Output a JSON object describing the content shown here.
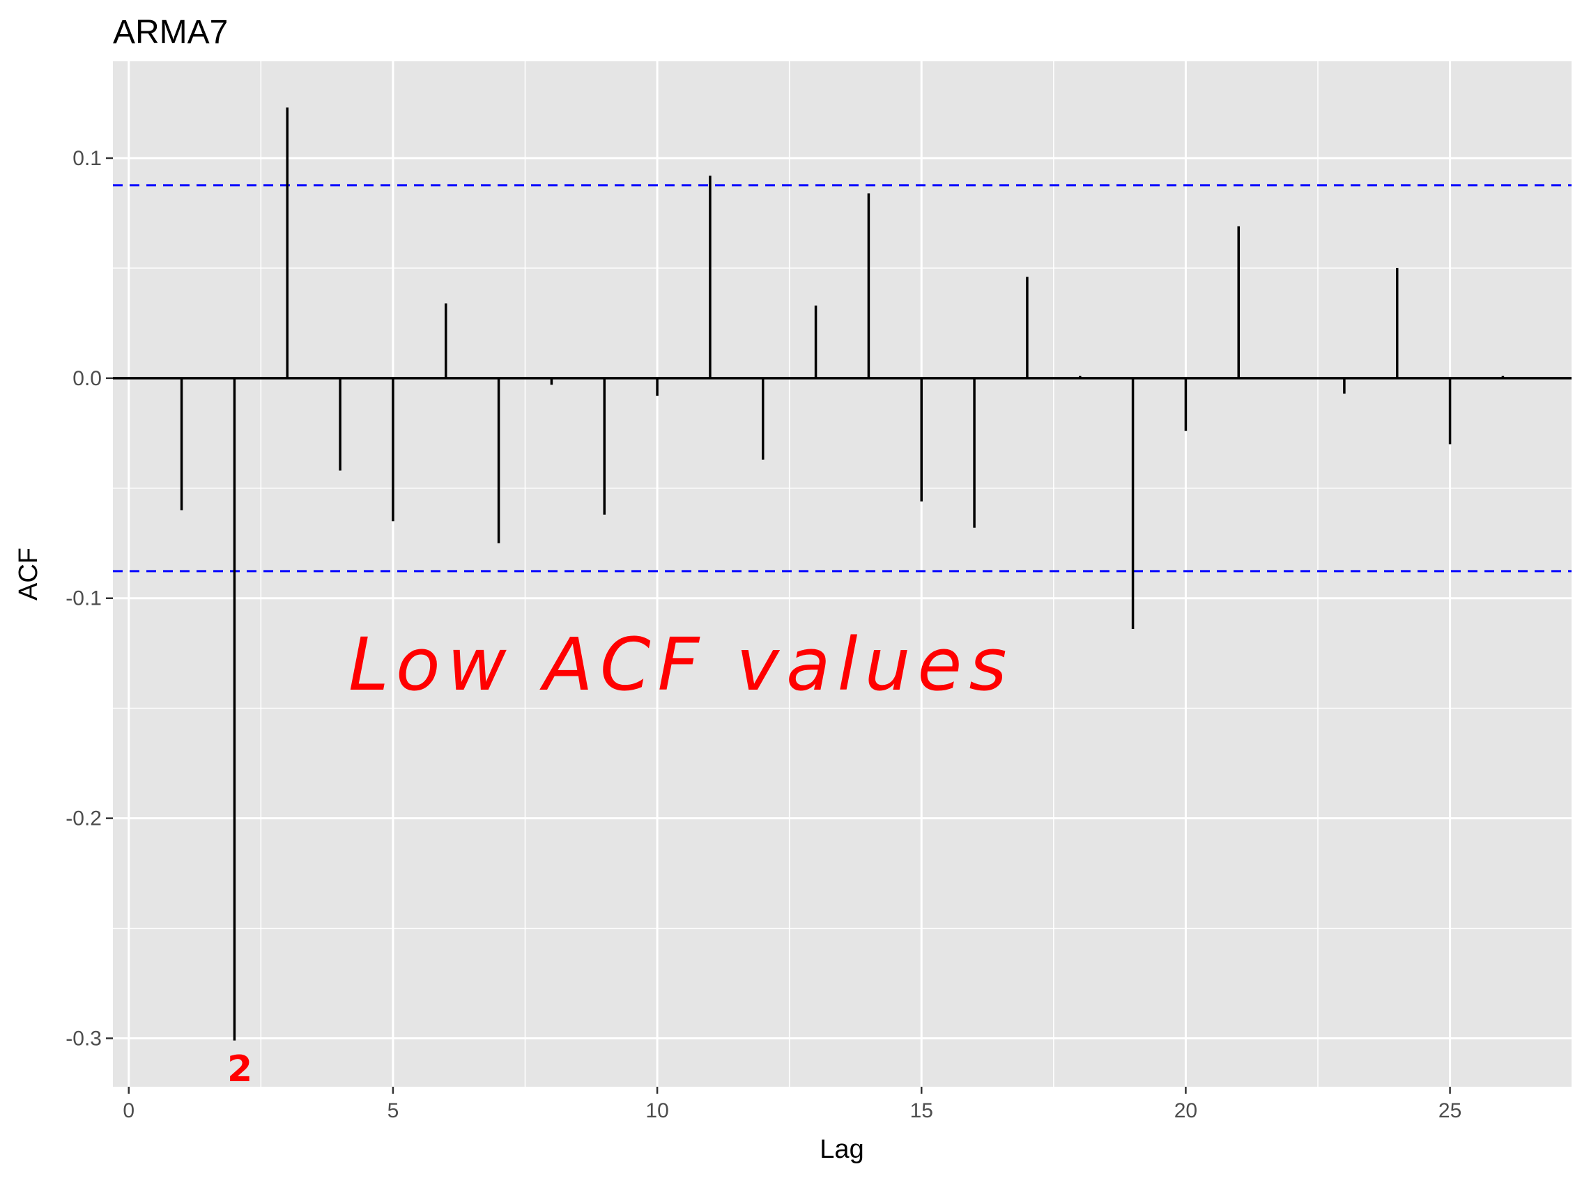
{
  "chart_data": {
    "type": "bar",
    "title": "ARMA7",
    "xlabel": "Lag",
    "ylabel": "ACF",
    "xlim": [
      -0.3,
      27.3
    ],
    "ylim": [
      -0.322,
      0.144
    ],
    "x_major_ticks": [
      0,
      5,
      10,
      15,
      20,
      25
    ],
    "x_tick_labels": [
      "0",
      "5",
      "10",
      "15",
      "20",
      "25"
    ],
    "y_major_ticks": [
      -0.3,
      -0.2,
      -0.1,
      0.0,
      0.1
    ],
    "y_tick_labels": [
      "-0.3",
      "-0.2",
      "-0.1",
      "0.0",
      "0.1"
    ],
    "grid": true,
    "lags": [
      1,
      2,
      3,
      4,
      5,
      6,
      7,
      8,
      9,
      10,
      11,
      12,
      13,
      14,
      15,
      16,
      17,
      18,
      19,
      20,
      21,
      22,
      23,
      24,
      25,
      26
    ],
    "values": [
      -0.06,
      -0.301,
      0.123,
      -0.042,
      -0.065,
      0.034,
      -0.075,
      -0.003,
      -0.062,
      -0.008,
      0.092,
      -0.037,
      0.033,
      0.084,
      -0.056,
      -0.068,
      0.046,
      0.001,
      -0.114,
      -0.024,
      0.069,
      0.0,
      -0.007,
      0.05,
      -0.03,
      0.001
    ],
    "confidence_bound": 0.0877,
    "colors": {
      "panel": "#e5e5e5",
      "grid": "#ffffff",
      "bar": "#000000",
      "bound": "#0000ff",
      "annotation": "#ff0000"
    }
  },
  "annotations": {
    "note": "Low ACF values",
    "lag_mark": "2"
  }
}
